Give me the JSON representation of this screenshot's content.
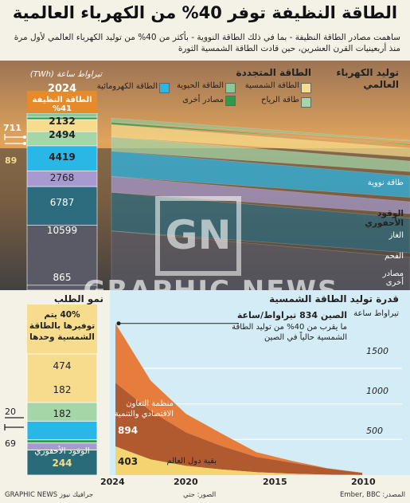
{
  "title": "الطاقة النظيفة توفر 40% من الكهرباء العالمية",
  "subtitle": "ساهمت مصادر الطاقة النظيفة - بما في ذلك الطاقة النووية - بأكثر من 40% من توليد الكهرباء العالمي لأول مرة منذ أربعينيات القرن العشرين، حين قادت الطاقة الشمسية الثورة",
  "watermark": {
    "logo": "GN",
    "text": "GRAPHIC NEWS"
  },
  "colors": {
    "solar": "#f6dc8c",
    "wind": "#a4d6a8",
    "bio": "#8cc79a",
    "other_renew": "#2e9b4a",
    "hydro": "#29b7e8",
    "nuclear": "#a69ad0",
    "gas": "#2d6b7f",
    "coal": "#5a5a66",
    "fossil_demand": "#2a6b7a",
    "bg": "#f4f1e6"
  },
  "top": {
    "heading": "توليد الكهرباء العالمي",
    "unit": "تيراواط ساعة (TWh)",
    "year": "2024",
    "clean_share": "الطاقة النظيفة 41%",
    "renew_heading": "الطاقة المتجددة",
    "legend": [
      {
        "key": "solar",
        "label": "الطاقة الشمسية"
      },
      {
        "key": "bio",
        "label": "الطاقة الحيوية"
      },
      {
        "key": "hydro",
        "label": "الطاقة الكهرومائية"
      },
      {
        "key": "wind",
        "label": "طاقة الرياح"
      },
      {
        "key": "other_renew",
        "label": "مصادر أخرى"
      }
    ],
    "side_labels": {
      "nuclear": "طاقة نووية",
      "fossil": "الوقود الأحفوري",
      "gas": "الغاز",
      "coal": "الفحم",
      "other": "مصادر أخرى"
    },
    "callouts": {
      "solar": "711",
      "bio": "89"
    }
  },
  "bottom": {
    "demand_heading": "نمو الطلب",
    "demand_note": "40% يتم توفيرها بالطاقة الشمسية وحدها",
    "fossil_label": "الوقود الأحفوري",
    "fossil_value": "244",
    "callouts": {
      "other": "20",
      "nuclear": "69"
    },
    "solar_heading": "قدرة توليد الطاقة الشمسية",
    "solar_unit": "تيراواط ساعة",
    "china_label": "الصين 834 تيراواط/ساعة",
    "china_note": "ما يقرب من 40% من توليد الطاقة الشمسية حالياً في الصين",
    "oecd_label": "منظمة التعاون الاقتصادي والتنمية",
    "oecd_value": "894",
    "rest_label": "بقية دول العالم",
    "rest_value": "403"
  },
  "footer": {
    "source": "المصدر: Ember, BBC",
    "photo": "الصور: جتي",
    "brand": "GRAPHIC NEWS جرافيك نيوز"
  },
  "chart_data": [
    {
      "type": "area",
      "title": "توليد الكهرباء العالمي",
      "unit": "TWh",
      "year": "2024",
      "series": [
        {
          "name": "الفحم",
          "key": "coal",
          "value": 10599
        },
        {
          "name": "الغاز",
          "key": "gas",
          "value": 6787
        },
        {
          "name": "مصادر أخرى",
          "key": "other_fossil",
          "value": 865
        },
        {
          "name": "طاقة نووية",
          "key": "nuclear",
          "value": 2768
        },
        {
          "name": "الطاقة الكهرومائية",
          "key": "hydro",
          "value": 4419
        },
        {
          "name": "طاقة الرياح",
          "key": "wind",
          "value": 2494
        },
        {
          "name": "الطاقة الشمسية",
          "key": "solar",
          "value": 2132
        },
        {
          "name": "مصادر أخرى",
          "key": "other_renew",
          "value": 89
        },
        {
          "name": "الطاقة الحيوية",
          "key": "bio",
          "value": 711
        }
      ]
    },
    {
      "type": "bar",
      "title": "نمو الطلب",
      "stack": [
        {
          "name": "الطاقة الشمسية",
          "key": "solar",
          "value": 474
        },
        {
          "name": "طاقة الرياح",
          "key": "wind",
          "value": 182
        },
        {
          "name": "الطاقة الكهرومائية",
          "key": "hydro",
          "value": 182
        },
        {
          "name": "مصادر أخرى",
          "key": "other_renew",
          "value": 20
        },
        {
          "name": "طاقة نووية",
          "key": "nuclear",
          "value": 69
        },
        {
          "name": "الوقود الأحفوري",
          "key": "fossil",
          "value": 244
        }
      ]
    },
    {
      "type": "area",
      "title": "قدرة توليد الطاقة الشمسية",
      "ylabel": "تيراواط ساعة",
      "x": [
        2010,
        2012,
        2014,
        2016,
        2018,
        2020,
        2022,
        2024
      ],
      "xticks": [
        2024,
        2020,
        2015,
        2010
      ],
      "yticks": [
        500,
        1000,
        1500
      ],
      "ylim": [
        0,
        2150
      ],
      "xlim": [
        2010,
        2024
      ],
      "series": [
        {
          "name": "الصين",
          "values": [
            2,
            6,
            25,
            67,
            177,
            261,
            427,
            834
          ]
        },
        {
          "name": "منظمة التعاون الاقتصادي والتنمية",
          "values": [
            30,
            85,
            155,
            215,
            330,
            470,
            680,
            894
          ]
        },
        {
          "name": "بقية دول العالم",
          "values": [
            1,
            7,
            20,
            40,
            80,
            130,
            220,
            403
          ]
        }
      ]
    }
  ]
}
